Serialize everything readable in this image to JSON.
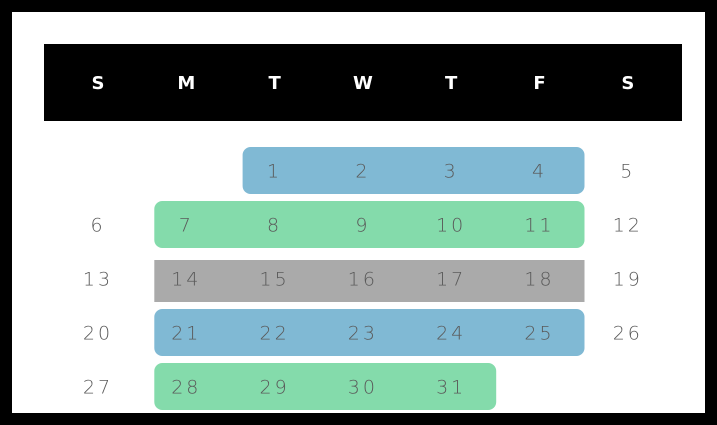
{
  "header": {
    "days": [
      "S",
      "M",
      "T",
      "W",
      "T",
      "F",
      "S"
    ]
  },
  "weeks": [
    {
      "days": [
        null,
        null,
        1,
        2,
        3,
        4,
        5
      ],
      "color": "#80b9d4",
      "rounded": true
    },
    {
      "days": [
        6,
        7,
        8,
        9,
        10,
        11,
        12
      ],
      "color": "#84dbab",
      "rounded": true
    },
    {
      "days": [
        13,
        14,
        15,
        16,
        17,
        18,
        19
      ],
      "color": "#aaaaaa",
      "rounded": false
    },
    {
      "days": [
        20,
        21,
        22,
        23,
        24,
        25,
        26
      ],
      "color": "#80b9d4",
      "rounded": true
    },
    {
      "days": [
        27,
        28,
        29,
        30,
        31,
        null,
        null
      ],
      "color": "#84dbab",
      "rounded": true
    }
  ]
}
